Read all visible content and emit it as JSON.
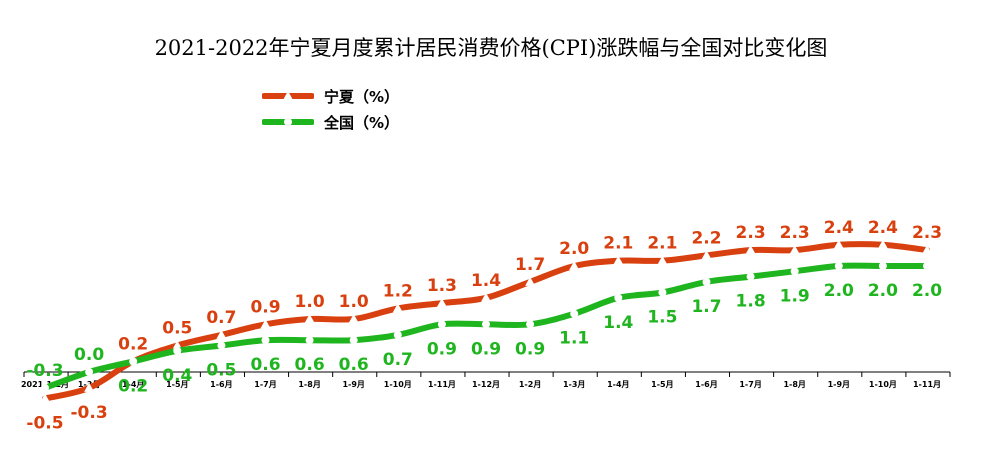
{
  "chart_data": {
    "type": "line",
    "title": "2021-2022年宁夏月度累计居民消费价格(CPI)涨跌幅与全国对比变化图",
    "categories": [
      "2021-1-2月",
      "1-3月",
      "1-4月",
      "1-5月",
      "1-6月",
      "1-7月",
      "1-8月",
      "1-9月",
      "1-10月",
      "1-11月",
      "1-12月",
      "1-2月",
      "1-3月",
      "1-4月",
      "1-5月",
      "1-6月",
      "1-7月",
      "1-8月",
      "1-9月",
      "1-10月",
      "1-11月"
    ],
    "series": [
      {
        "name": "宁夏（%）",
        "color": "#d9400f",
        "marker": "triangle",
        "values": [
          -0.5,
          -0.3,
          0.2,
          0.5,
          0.7,
          0.9,
          1.0,
          1.0,
          1.2,
          1.3,
          1.4,
          1.7,
          2.0,
          2.1,
          2.1,
          2.2,
          2.3,
          2.3,
          2.4,
          2.4,
          2.3
        ]
      },
      {
        "name": "全国（%）",
        "color": "#1fb51f",
        "marker": "circle",
        "values": [
          -0.3,
          0.0,
          0.2,
          0.4,
          0.5,
          0.6,
          0.6,
          0.6,
          0.7,
          0.9,
          0.9,
          0.9,
          1.1,
          1.4,
          1.5,
          1.7,
          1.8,
          1.9,
          2.0,
          2.0,
          2.0
        ]
      }
    ],
    "ylim": [
      -0.5,
      2.4
    ],
    "grid": false,
    "legend_position": "top-left"
  }
}
